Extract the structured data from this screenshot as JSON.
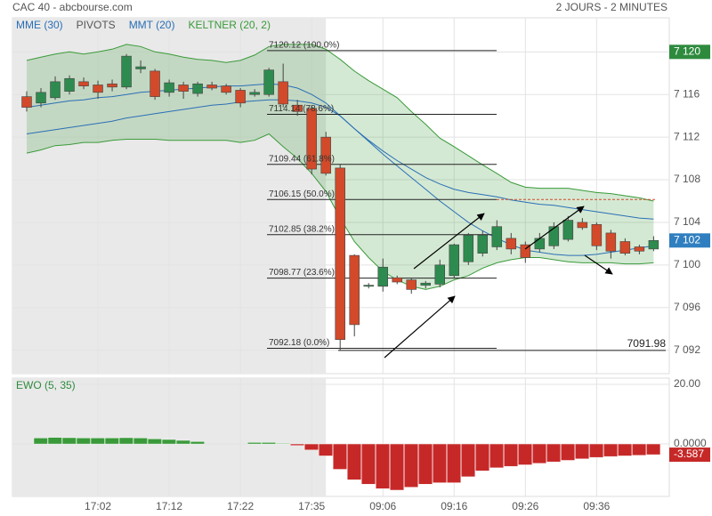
{
  "title": "CAC 40 - abcbourse.com",
  "subtitle": "2 JOURS - 2 MINUTES",
  "chart_data": [
    {
      "type": "candlestick",
      "xlim": [
        -1,
        45.1
      ],
      "ylim": [
        7089.8,
        7123.2
      ],
      "yticks": [
        {
          "value": 7092,
          "label": "7 092"
        },
        {
          "value": 7096,
          "label": "7 096"
        },
        {
          "value": 7100,
          "label": "7 100"
        },
        {
          "value": 7104,
          "label": "7 104"
        },
        {
          "value": 7108,
          "label": "7 108"
        },
        {
          "value": 7112,
          "label": "7 112"
        },
        {
          "value": 7116,
          "label": "7 116"
        },
        {
          "value": 7120,
          "label": "7 120"
        }
      ],
      "grid": true,
      "shade_until": 21,
      "up_color": "#2e8b4f",
      "down_color": "#d24a2a",
      "open": [
        7115.8,
        7115.2,
        7115.7,
        7116.3,
        7117.2,
        7116.9,
        7117.0,
        7116.7,
        7118.4,
        7118.2,
        7116.2,
        7116.9,
        7116.1,
        7116.9,
        7116.8,
        7116.4,
        7116.0,
        7116.0,
        7117.2,
        7115.0,
        7114.7,
        7112.0,
        7109.1,
        7100.9,
        7098.0,
        7098.0,
        7098.8,
        7098.6,
        7098.1,
        7098.2,
        7099.0,
        7100.3,
        7101.1,
        7101.7,
        7102.5,
        7101.9,
        7101.5,
        7101.8,
        7102.4,
        7104.0,
        7103.8,
        7103.0,
        7102.2,
        7101.7,
        7101.5
      ],
      "high": [
        7116.3,
        7116.6,
        7117.7,
        7117.8,
        7117.6,
        7117.3,
        7117.4,
        7119.8,
        7119.2,
        7118.4,
        7117.4,
        7117.2,
        7117.2,
        7117.2,
        7117.0,
        7116.6,
        7116.5,
        7118.5,
        7118.9,
        7115.5,
        7115.0,
        7112.5,
        7109.5,
        7101.0,
        7098.3,
        7100.6,
        7099.0,
        7098.8,
        7098.5,
        7100.5,
        7102.0,
        7103.0,
        7103.2,
        7104.2,
        7103.0,
        7102.2,
        7103.0,
        7104.0,
        7104.6,
        7104.4,
        7104.0,
        7103.3,
        7102.5,
        7101.9,
        7102.7
      ],
      "low": [
        7114.4,
        7114.8,
        7115.5,
        7116.0,
        7116.5,
        7115.6,
        7116.3,
        7116.5,
        7118.0,
        7115.5,
        7115.8,
        7115.6,
        7115.8,
        7116.4,
        7116.0,
        7114.8,
        7115.8,
        7115.8,
        7114.8,
        7114.0,
        7108.5,
        7108.4,
        7091.98,
        7093.3,
        7097.8,
        7097.5,
        7098.2,
        7097.3,
        7097.8,
        7097.9,
        7098.8,
        7100.0,
        7100.8,
        7101.4,
        7101.0,
        7100.2,
        7101.2,
        7101.5,
        7102.2,
        7103.3,
        7101.4,
        7100.6,
        7100.9,
        7101.0,
        7101.3
      ],
      "close": [
        7114.8,
        7116.2,
        7117.2,
        7117.5,
        7116.8,
        7116.2,
        7116.7,
        7119.6,
        7118.6,
        7115.8,
        7117.1,
        7116.3,
        7117.0,
        7116.6,
        7116.2,
        7115.2,
        7116.2,
        7118.3,
        7115.1,
        7114.4,
        7109.0,
        7108.6,
        7093.0,
        7094.4,
        7098.1,
        7099.8,
        7098.4,
        7097.7,
        7098.3,
        7100.0,
        7101.9,
        7102.8,
        7102.8,
        7103.6,
        7101.5,
        7100.7,
        7102.5,
        7103.6,
        7104.2,
        7103.5,
        7101.8,
        7101.3,
        7101.1,
        7101.3,
        7102.3
      ],
      "keltner": {
        "name": "KELTNER (20, 2)",
        "color": "#3a9a3a",
        "upper": [
          7119.2,
          7119.5,
          7119.8,
          7120.0,
          7119.8,
          7120.0,
          7120.25,
          7120.7,
          7120.5,
          7120.0,
          7119.8,
          7119.5,
          7119.3,
          7119.2,
          7119.0,
          7119.2,
          7119.7,
          7120.5,
          7120.7,
          7120.7,
          7120.7,
          7120.25,
          7119.3,
          7118.2,
          7117.3,
          7116.5,
          7115.7,
          7114.4,
          7113.2,
          7111.9,
          7111.1,
          7110.25,
          7109.4,
          7108.6,
          7107.75,
          7107.3,
          7107.2,
          7107.2,
          7107.2,
          7107.0,
          7106.8,
          7106.7,
          7106.5,
          7106.3,
          7106.0
        ],
        "lower": [
          7110.5,
          7110.8,
          7111.2,
          7111.3,
          7111.5,
          7111.5,
          7111.7,
          7111.8,
          7111.8,
          7111.8,
          7111.7,
          7111.7,
          7111.7,
          7111.7,
          7111.7,
          7111.5,
          7111.7,
          7112.3,
          7111.1,
          7110.0,
          7108.6,
          7106.9,
          7104.4,
          7102.2,
          7100.7,
          7099.4,
          7098.6,
          7098.0,
          7097.7,
          7098.0,
          7098.6,
          7099.0,
          7099.7,
          7100.2,
          7100.5,
          7100.7,
          7100.7,
          7100.5,
          7100.3,
          7100.2,
          7100.2,
          7100.2,
          7100.1,
          7100.1,
          7100.2
        ]
      },
      "series": [
        {
          "name": "MME (30)",
          "color": "#2a6fb5",
          "values": [
            7112.3,
            7112.5,
            7112.7,
            7112.9,
            7113.1,
            7113.3,
            7113.5,
            7113.8,
            7114.0,
            7114.2,
            7114.4,
            7114.6,
            7114.8,
            7115.0,
            7115.1,
            7115.3,
            7115.4,
            7115.5,
            7115.5,
            7115.4,
            7115.2,
            7114.8,
            7114.0,
            7112.8,
            7111.6,
            7110.4,
            7109.3,
            7108.2,
            7107.1,
            7106.0,
            7105.0,
            7104.0,
            7103.2,
            7102.5,
            7101.9,
            7101.4,
            7101.2,
            7101.0,
            7100.9,
            7100.9,
            7101.0,
            7101.2,
            7101.4,
            7101.6,
            7101.8
          ]
        },
        {
          "name": "MMT (20)",
          "color": "#2a6fb5",
          "values": [
            7114.8,
            7115.0,
            7115.2,
            7115.4,
            7115.5,
            7115.7,
            7115.8,
            7116.0,
            7116.2,
            7116.3,
            7116.4,
            7116.5,
            7116.6,
            7116.7,
            7116.8,
            7116.8,
            7116.9,
            7117.0,
            7116.9,
            7116.6,
            7116.0,
            7115.2,
            7114.0,
            7112.8,
            7111.7,
            7110.7,
            7109.8,
            7109.0,
            7108.2,
            7107.6,
            7107.1,
            7106.8,
            7106.6,
            7106.4,
            7106.1,
            7105.9,
            7105.7,
            7105.6,
            7105.4,
            7105.2,
            7105.0,
            7104.8,
            7104.6,
            7104.4,
            7104.3
          ]
        }
      ],
      "pivots": {
        "name": "PIVOTS",
        "color": "#222",
        "extension_color": "#d24a2a",
        "extended_level": 3,
        "levels": [
          {
            "value": 7120.12,
            "label": "7120.12  (100.0%)"
          },
          {
            "value": 7114.14,
            "label": "7114.14  (78.6%)"
          },
          {
            "value": 7109.44,
            "label": "7109.44  (61.8%)"
          },
          {
            "value": 7106.15,
            "label": "7106.15  (50.0%)"
          },
          {
            "value": 7102.85,
            "label": "7102.85  (38.2%)"
          },
          {
            "value": 7098.77,
            "label": "7098.77  (23.6%)"
          },
          {
            "value": 7092.18,
            "label": "7092.18  (0.0%)"
          }
        ],
        "low": 7091.98
      },
      "badges": [
        {
          "value": 7120,
          "label": "7 120",
          "color": "#2e8b3e"
        },
        {
          "value": 7102.3,
          "label": "7 102",
          "color": "#2f7fc0"
        }
      ]
    },
    {
      "type": "bar",
      "name": "EWO (5, 35)",
      "xlim": [
        -1,
        45.1
      ],
      "ylim": [
        -17.6,
        22.1
      ],
      "yticks": [
        {
          "value": 20,
          "label": "20.00"
        },
        {
          "value": 0,
          "label": "0.0000"
        }
      ],
      "xticks": [
        {
          "value": 5,
          "label": "17:02"
        },
        {
          "value": 10,
          "label": "17:12"
        },
        {
          "value": 15,
          "label": "17:22"
        },
        {
          "value": 20,
          "label": "17:35"
        },
        {
          "value": 25,
          "label": "09:06"
        },
        {
          "value": 30,
          "label": "09:16"
        },
        {
          "value": 35,
          "label": "09:26"
        },
        {
          "value": 40,
          "label": "09:36"
        }
      ],
      "grid": true,
      "shade_until": 21,
      "up_color": "#3a9a3a",
      "down_color": "#c62828",
      "badge_color": "#c62828",
      "values": [
        null,
        2.0,
        2.2,
        2.1,
        2.0,
        2.0,
        2.0,
        2.1,
        2.0,
        1.7,
        1.5,
        1.2,
        0.8,
        null,
        null,
        null,
        0.5,
        0.5,
        0.2,
        -0.5,
        -2.0,
        -4.0,
        -8.5,
        -12.0,
        -13.5,
        -15.0,
        -15.5,
        -14.5,
        -13.5,
        -13.0,
        -13.0,
        -11.0,
        -9.0,
        -8.0,
        -7.5,
        -7.0,
        -6.5,
        -6.0,
        -5.5,
        -5.0,
        -4.5,
        -4.2,
        -4.0,
        -3.8,
        -3.587
      ]
    }
  ]
}
